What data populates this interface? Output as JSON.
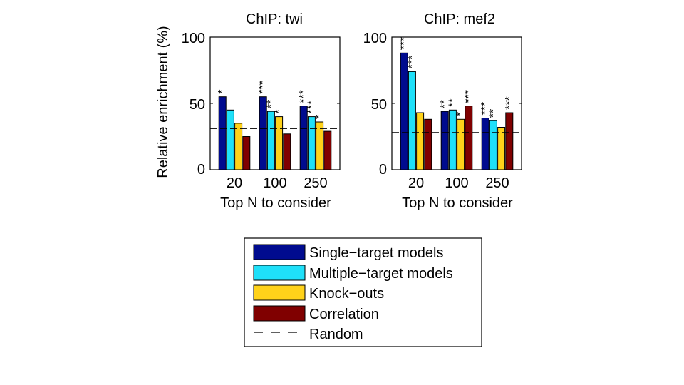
{
  "ylabel": "Relative enrichment (%)",
  "chart_data": [
    {
      "type": "bar",
      "title": "ChIP: twi",
      "xlabel": "Top N to consider",
      "ylabel": "Relative enrichment (%)",
      "categories": [
        "20",
        "100",
        "250"
      ],
      "ylim": [
        0,
        100
      ],
      "yticks": [
        "0",
        "50",
        "100"
      ],
      "random_level": 31,
      "series": [
        {
          "name": "Single−target models",
          "color": "#000b8f",
          "values": [
            55,
            55,
            48
          ],
          "stars": [
            "*",
            "***",
            "***"
          ]
        },
        {
          "name": "Multiple−target models",
          "color": "#1fe0f9",
          "values": [
            45,
            44,
            40
          ],
          "stars": [
            "",
            "**",
            "***"
          ]
        },
        {
          "name": "Knock−outs",
          "color": "#ffd21a",
          "values": [
            35,
            40,
            36
          ],
          "stars": [
            "",
            "*",
            "*"
          ]
        },
        {
          "name": "Correlation",
          "color": "#800000",
          "values": [
            25,
            27,
            29
          ],
          "stars": [
            "",
            "",
            ""
          ]
        }
      ]
    },
    {
      "type": "bar",
      "title": "ChIP: mef2",
      "xlabel": "Top N to consider",
      "ylabel": "",
      "categories": [
        "20",
        "100",
        "250"
      ],
      "ylim": [
        0,
        100
      ],
      "yticks": [
        "0",
        "50",
        "100"
      ],
      "random_level": 28,
      "series": [
        {
          "name": "Single−target models",
          "color": "#000b8f",
          "values": [
            88,
            44,
            39
          ],
          "stars": [
            "***",
            "**",
            "***"
          ]
        },
        {
          "name": "Multiple−target models",
          "color": "#1fe0f9",
          "values": [
            74,
            45,
            37
          ],
          "stars": [
            "***",
            "**",
            "**"
          ]
        },
        {
          "name": "Knock−outs",
          "color": "#ffd21a",
          "values": [
            43,
            38,
            32
          ],
          "stars": [
            "",
            "*",
            ""
          ]
        },
        {
          "name": "Correlation",
          "color": "#800000",
          "values": [
            38,
            48,
            43
          ],
          "stars": [
            "",
            "***",
            "***"
          ]
        }
      ]
    }
  ],
  "legend": {
    "items": [
      "Single−target models",
      "Multiple−target models",
      "Knock−outs",
      "Correlation"
    ],
    "colors": [
      "#000b8f",
      "#1fe0f9",
      "#ffd21a",
      "#800000"
    ],
    "random_label": "Random"
  }
}
